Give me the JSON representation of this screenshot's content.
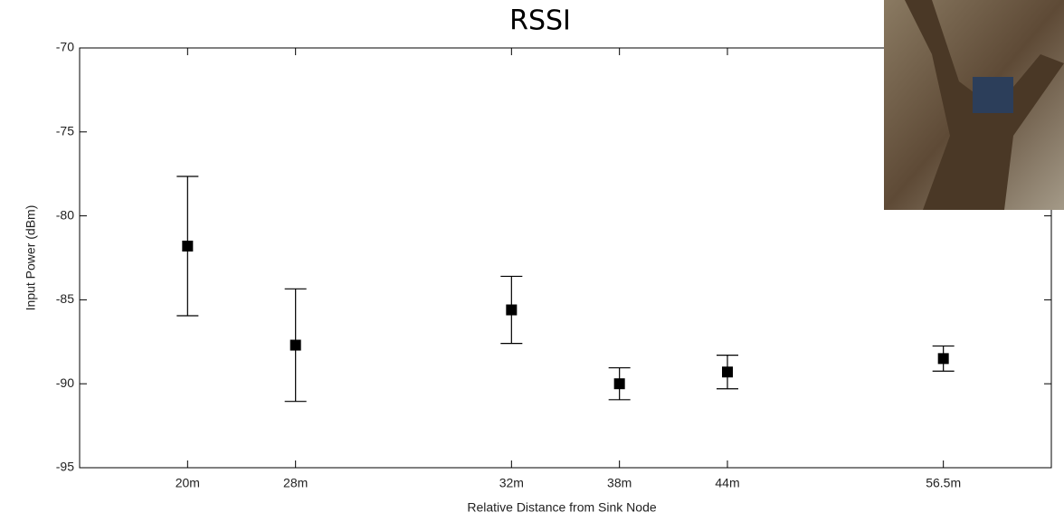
{
  "chart_data": {
    "type": "errorbar",
    "title": "RSSI",
    "xlabel": "Relative Distance from Sink Node",
    "ylabel": "Input Power (dBm)",
    "x": [
      1,
      2,
      4,
      5,
      6,
      8
    ],
    "values": [
      -81.8,
      -87.7,
      -85.6,
      -90.0,
      -89.3,
      -88.5
    ],
    "errors": [
      4.15,
      3.35,
      2.0,
      0.95,
      1.0,
      0.75
    ],
    "color": "#000000",
    "xlim": [
      0,
      9
    ],
    "xticks": [
      {
        "value": 1,
        "label": "20m"
      },
      {
        "value": 2,
        "label": "28m"
      },
      {
        "value": 4,
        "label": "32m"
      },
      {
        "value": 5,
        "label": "38m"
      },
      {
        "value": 6,
        "label": "44m"
      },
      {
        "value": 8,
        "label": "56.5m"
      }
    ],
    "ylim": [
      -95,
      -70
    ],
    "yticks": [
      -95,
      -90,
      -85,
      -80,
      -75,
      -70
    ]
  }
}
